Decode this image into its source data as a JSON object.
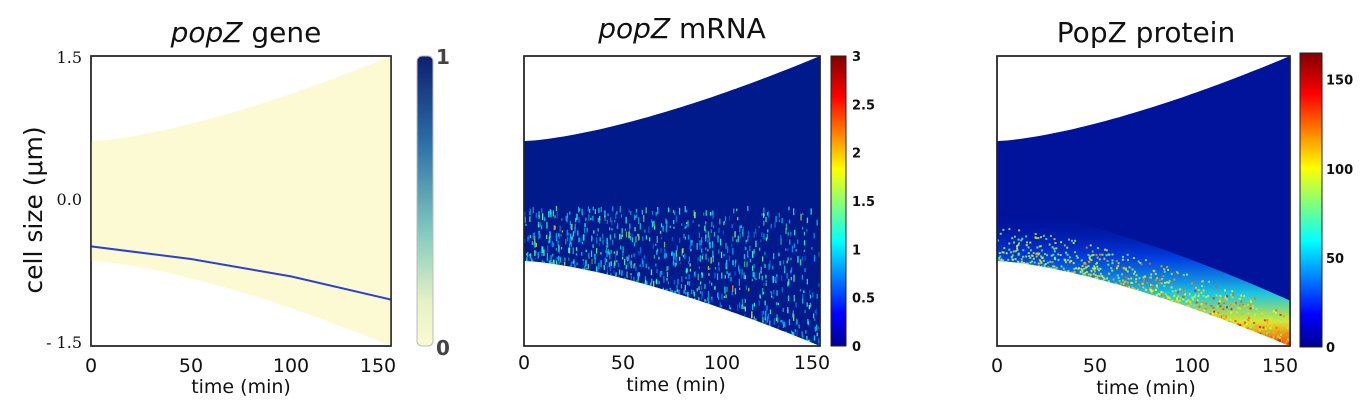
{
  "chart_data": [
    {
      "type": "heatmap",
      "title_italic": "popZ",
      "title_rest": " gene",
      "xlabel": "time (min)",
      "ylabel": "cell size (μm)",
      "xlim": [
        0,
        150
      ],
      "ylim": [
        -1.5,
        1.5
      ],
      "x_ticks": [
        "0",
        "50",
        "100",
        "150"
      ],
      "y_ticks": [
        "1.5",
        "0.0",
        "- 1.5"
      ],
      "colorbar": {
        "range": [
          0,
          1
        ],
        "tick_labels": [
          "1",
          "0"
        ],
        "colors": [
          "#fbfad2",
          "#0d1f6e"
        ]
      },
      "cell_envelope": {
        "x": [
          0,
          150
        ],
        "upper": [
          0.62,
          1.5
        ],
        "lower": [
          -0.62,
          -1.5
        ]
      },
      "series": [
        {
          "x": [
            0,
            50,
            100,
            150
          ],
          "y": [
            -0.47,
            -0.6,
            -0.78,
            -1.02
          ],
          "color": "#2e3fd6"
        }
      ]
    },
    {
      "type": "heatmap",
      "title_italic": "popZ",
      "title_rest": " mRNA",
      "xlabel": "time (min)",
      "xlim": [
        0,
        150
      ],
      "x_ticks": [
        "0",
        "50",
        "100",
        "150"
      ],
      "colorbar": {
        "range": [
          0,
          3
        ],
        "tick_labels": [
          "3",
          "2.5",
          "2",
          "1.5",
          "1",
          "0.5",
          "0"
        ],
        "colormap": "jet"
      },
      "cell_envelope": {
        "x": [
          0,
          150
        ],
        "upper": [
          0.62,
          1.5
        ],
        "lower": [
          -0.62,
          -1.5
        ]
      },
      "background_value": 0,
      "hotspot": {
        "location": "lower part of cell (below ~-0.05 μm)",
        "typical_value": 0.8,
        "max_value": 1.6
      }
    },
    {
      "type": "heatmap",
      "title": "PopZ protein",
      "xlabel": "time (min)",
      "xlim": [
        0,
        150
      ],
      "x_ticks": [
        "0",
        "50",
        "100",
        "150"
      ],
      "colorbar": {
        "range": [
          0,
          165
        ],
        "tick_labels": [
          "150",
          "100",
          "50",
          "0"
        ],
        "colormap": "jet"
      },
      "cell_envelope": {
        "x": [
          0,
          150
        ],
        "upper": [
          0.62,
          1.5
        ],
        "lower": [
          -0.62,
          -1.5
        ]
      },
      "background_value": 8,
      "hotspot": {
        "location": "lower pole of cell",
        "typical_value": 95,
        "max_value": 160
      }
    }
  ]
}
